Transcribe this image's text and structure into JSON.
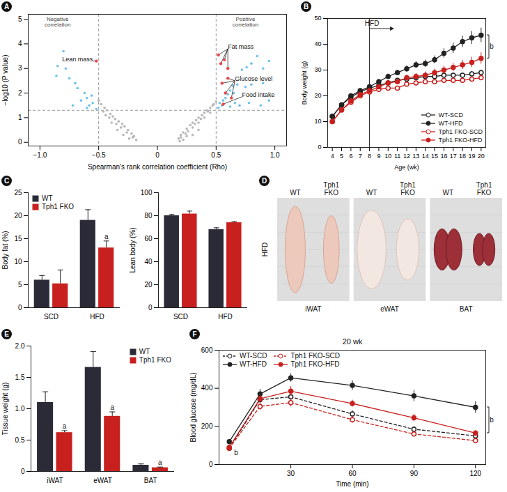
{
  "chart_data": [
    {
      "panel": "A",
      "type": "scatter",
      "xlabel": "Spearman's rank correlation coefficient (Rho)",
      "ylabel": "−log10 (P value)",
      "xlim": [
        -1.1,
        1.1
      ],
      "ylim": [
        -0.15,
        5.2
      ],
      "xticks": [
        {
          "value": -1,
          "label": "−1.0"
        },
        {
          "value": -0.5,
          "label": "−0.5"
        },
        0,
        0.5,
        {
          "value": 1,
          "label": "1.0"
        }
      ],
      "yticks": [
        0,
        1,
        2,
        3,
        4,
        5
      ],
      "reference_lines": {
        "x": [
          -0.5,
          0.5
        ],
        "y": [
          1.3
        ]
      },
      "series": [
        {
          "color": "#b8b8b8",
          "x": [
            0.18,
            0.2,
            0.22,
            0.25,
            0.28,
            0.3,
            0.33,
            0.35,
            0.38,
            0.4,
            0.42,
            0.45,
            0.47,
            0.5,
            0.2,
            0.24,
            0.3,
            0.35,
            0.4,
            0.45,
            0.26,
            0.32,
            0.37,
            0.43,
            0.48,
            0.3,
            0.25,
            0.35,
            0.19,
            0.22,
            -0.18,
            -0.2,
            -0.22,
            -0.25,
            -0.28,
            -0.3,
            -0.33,
            -0.36,
            -0.38,
            -0.4,
            -0.43,
            -0.45,
            -0.48,
            -0.5,
            -0.21,
            -0.26,
            -0.31,
            -0.35,
            -0.41,
            -0.46,
            -0.29,
            -0.34,
            -0.39,
            -0.44,
            -0.24
          ],
          "y": [
            0.15,
            0.3,
            0.4,
            0.55,
            0.7,
            0.8,
            0.9,
            1.0,
            1.1,
            1.2,
            1.3,
            1.4,
            1.5,
            1.65,
            0.2,
            0.35,
            0.6,
            0.8,
            1.0,
            1.2,
            0.45,
            0.75,
            0.95,
            1.25,
            1.55,
            0.3,
            0.25,
            0.5,
            0.05,
            0.1,
            0.1,
            0.25,
            0.35,
            0.5,
            0.65,
            0.75,
            0.85,
            0.95,
            1.05,
            1.15,
            1.3,
            1.4,
            1.55,
            1.7,
            0.2,
            0.4,
            0.6,
            0.75,
            1.0,
            1.25,
            0.3,
            0.5,
            0.8,
            1.1,
            0.15
          ]
        },
        {
          "color": "#6ec1ea",
          "x": [
            0.52,
            0.55,
            0.56,
            0.58,
            0.6,
            0.62,
            0.64,
            0.68,
            0.75,
            0.8,
            0.9,
            0.72,
            0.76,
            0.8,
            0.85,
            0.9,
            0.95,
            0.88,
            0.78,
            0.7,
            0.66,
            0.62,
            0.53,
            0.95,
            0.65,
            -0.52,
            -0.55,
            -0.58,
            -0.6,
            -0.62,
            -0.65,
            -0.68,
            -0.7,
            -0.72,
            -0.75,
            -0.78,
            -0.8,
            -0.85,
            -0.86,
            -0.56,
            -0.6
          ],
          "y": [
            1.4,
            1.5,
            1.7,
            1.8,
            1.95,
            2.1,
            2.3,
            2.35,
            2.25,
            2.35,
            2.4,
            2.95,
            3.05,
            3.2,
            3.5,
            3.0,
            3.3,
            1.5,
            1.6,
            1.5,
            1.6,
            1.45,
            1.6,
            1.7,
            2.0,
            1.35,
            1.6,
            1.5,
            1.8,
            2.0,
            1.7,
            2.2,
            2.4,
            1.5,
            2.6,
            3.0,
            3.7,
            3.1,
            2.7,
            1.9,
            1.4
          ]
        }
      ],
      "highlight_color": "#e8474c",
      "labeled_points": [
        {
          "label": "Lean mass",
          "label_x": -0.55,
          "label_y": 3.3,
          "x": [
            -0.52
          ],
          "y": [
            3.3
          ]
        },
        {
          "label": "Fat mass",
          "label_x": 0.6,
          "label_y": 3.8,
          "x": [
            0.52,
            0.54,
            0.57,
            0.6
          ],
          "y": [
            3.55,
            3.2,
            3.35,
            3.0
          ]
        },
        {
          "label": "Glucose level",
          "label_x": 0.66,
          "label_y": 2.5,
          "x": [
            0.55,
            0.58,
            0.6,
            0.63
          ],
          "y": [
            2.4,
            2.0,
            2.6,
            1.8
          ]
        },
        {
          "label": "Food intake",
          "label_x": 0.72,
          "label_y": 1.85,
          "x": [
            0.56
          ],
          "y": [
            1.55
          ]
        }
      ],
      "annotations": [
        {
          "text": "Negative correlation",
          "x": -0.85,
          "y": 5.1
        },
        {
          "text": "Positive correlation",
          "x": 0.75,
          "y": 5.1
        }
      ]
    },
    {
      "panel": "B",
      "type": "line",
      "xlabel": "Age (wk)",
      "ylabel": "Body weight (g)",
      "x": [
        4,
        5,
        6,
        7,
        8,
        9,
        10,
        11,
        12,
        13,
        14,
        15,
        16,
        17,
        18,
        19,
        20
      ],
      "xlim": [
        3.5,
        20.5
      ],
      "xticks": [
        4,
        5,
        6,
        7,
        8,
        9,
        10,
        11,
        12,
        13,
        14,
        15,
        16,
        17,
        18,
        19,
        20
      ],
      "ylim": [
        0,
        50
      ],
      "yticks": [
        0,
        10,
        20,
        30,
        40,
        50
      ],
      "series": [
        {
          "name": "WT-SCD",
          "color": "#222222",
          "marker": "open",
          "line_style": "solid",
          "values": [
            12,
            16.5,
            19.5,
            21.5,
            23,
            24,
            25,
            26,
            26.5,
            27,
            27.5,
            27.5,
            28,
            28,
            28,
            28.5,
            29
          ],
          "errors": [
            0.8,
            0.8,
            0.8,
            0.8,
            0.8,
            0.8,
            0.8,
            0.8,
            0.8,
            0.8,
            0.8,
            0.8,
            0.9,
            0.9,
            0.9,
            1.0,
            1.0
          ]
        },
        {
          "name": "WT-HFD",
          "color": "#222222",
          "marker": "filled",
          "line_style": "solid",
          "values": [
            12,
            16.5,
            20,
            22,
            23.5,
            25.5,
            27.5,
            29,
            30.5,
            32,
            32.5,
            34,
            36.5,
            38.5,
            41,
            42.5,
            43.5
          ],
          "errors": [
            0.8,
            0.8,
            0.8,
            0.8,
            0.8,
            0.9,
            1.0,
            1.0,
            1.2,
            1.3,
            1.4,
            1.5,
            1.8,
            2.0,
            2.2,
            2.5,
            2.8
          ]
        },
        {
          "name": "Tph1 FKO-SCD",
          "color": "#c8201e",
          "marker": "open",
          "line_style": "solid",
          "values": [
            10,
            14.5,
            17.5,
            20,
            21.5,
            22.5,
            23,
            23,
            24.5,
            25,
            25.5,
            25.5,
            26,
            26,
            26,
            26.5,
            27
          ],
          "errors": [
            0.8,
            0.8,
            0.8,
            0.8,
            0.8,
            0.8,
            0.8,
            0.8,
            0.8,
            0.8,
            0.8,
            0.8,
            0.8,
            0.8,
            0.9,
            0.9,
            0.9
          ]
        },
        {
          "name": "Tph1 FKO-HFD",
          "color": "#c8201e",
          "marker": "filled",
          "line_style": "solid",
          "values": [
            10,
            14.5,
            18,
            20.5,
            22,
            23.5,
            25,
            25.5,
            27,
            27.5,
            28,
            29,
            30,
            31,
            32,
            33,
            34.5
          ],
          "errors": [
            0.8,
            0.8,
            0.8,
            0.8,
            0.8,
            0.9,
            1.0,
            1.0,
            1.1,
            1.2,
            1.3,
            1.4,
            1.5,
            1.6,
            1.8,
            2.0,
            2.2
          ]
        }
      ],
      "legend": "bottom-right",
      "treatment": {
        "text": "HFD",
        "x": 8
      },
      "annotations": [
        {
          "text": "b",
          "x": 20,
          "between": [
            "WT-HFD",
            "Tph1 FKO-HFD"
          ]
        }
      ]
    },
    {
      "panel": "C",
      "type": "bar",
      "ylabel": "Body fat (%)",
      "categories": [
        "SCD",
        "HFD"
      ],
      "series": [
        {
          "name": "WT",
          "color": "#2b2b38",
          "values": [
            6,
            19
          ],
          "errors": [
            1,
            2.3
          ]
        },
        {
          "name": "Tph1 FKO",
          "color": "#c8201e",
          "values": [
            5.2,
            13
          ],
          "errors": [
            3,
            1.5
          ]
        }
      ],
      "ylim": [
        0,
        25
      ],
      "yticks": [
        0,
        5,
        10,
        15,
        20,
        25
      ],
      "legend": "top-left",
      "annotations": [
        {
          "text": "a",
          "category": "HFD",
          "series": "Tph1 FKO"
        }
      ]
    },
    {
      "panel": "C",
      "type": "bar",
      "ylabel": "Lean body (%)",
      "categories": [
        "SCD",
        "HFD"
      ],
      "series": [
        {
          "name": "WT",
          "color": "#2b2b38",
          "values": [
            80,
            68
          ],
          "errors": [
            1,
            1.5
          ]
        },
        {
          "name": "Tph1 FKO",
          "color": "#c8201e",
          "values": [
            81.5,
            74
          ],
          "errors": [
            2.5,
            0.8
          ]
        }
      ],
      "ylim": [
        0,
        100
      ],
      "yticks": [
        0,
        20,
        40,
        60,
        80,
        100
      ]
    },
    {
      "panel": "D",
      "type": "image",
      "row_label": "HFD",
      "groups": [
        {
          "label": "iWAT",
          "columns": [
            "WT",
            "Tph1 FKO"
          ]
        },
        {
          "label": "eWAT",
          "columns": [
            "WT",
            "Tph1 FKO"
          ]
        },
        {
          "label": "BAT",
          "columns": [
            "WT",
            "Tph1 FKO"
          ]
        }
      ]
    },
    {
      "panel": "E",
      "type": "bar",
      "ylabel": "Tissue weight (g)",
      "categories": [
        "iWAT",
        "eWAT",
        "BAT"
      ],
      "series": [
        {
          "name": "WT",
          "color": "#2b2b38",
          "values": [
            1.1,
            1.66,
            0.1
          ],
          "errors": [
            0.17,
            0.25,
            0.02
          ]
        },
        {
          "name": "Tph1 FKO",
          "color": "#c8201e",
          "values": [
            0.62,
            0.88,
            0.06
          ],
          "errors": [
            0.03,
            0.07,
            0.01
          ]
        }
      ],
      "ylim": [
        0,
        2
      ],
      "yticks": [
        0,
        0.5,
        {
          "value": 1,
          "label": "1.0"
        },
        1.5,
        {
          "value": 2,
          "label": "2.0"
        }
      ],
      "legend": "top-right",
      "annotations": [
        {
          "text": "a",
          "category": "iWAT",
          "series": "Tph1 FKO"
        },
        {
          "text": "a",
          "category": "eWAT",
          "series": "Tph1 FKO"
        },
        {
          "text": "a",
          "category": "BAT",
          "series": "Tph1 FKO"
        }
      ]
    },
    {
      "panel": "F",
      "type": "line",
      "title": "20 wk",
      "xlabel": "Time (min)",
      "ylabel": "Blood glucose (mg/dL)",
      "x": [
        0,
        15,
        30,
        60,
        90,
        120
      ],
      "xlim": [
        -5,
        125
      ],
      "xticks": [
        30,
        60,
        90,
        120
      ],
      "ylim": [
        0,
        600
      ],
      "yticks": [
        0,
        200,
        400,
        600
      ],
      "series": [
        {
          "name": "WT-SCD",
          "color": "#222222",
          "marker": "open",
          "line_style": "dashed",
          "values": [
            85,
            340,
            355,
            265,
            185,
            150
          ],
          "errors": [
            10,
            20,
            20,
            18,
            15,
            12
          ]
        },
        {
          "name": "WT-HFD",
          "color": "#222222",
          "marker": "filled",
          "line_style": "solid",
          "values": [
            120,
            370,
            455,
            415,
            360,
            300
          ],
          "errors": [
            12,
            25,
            22,
            25,
            30,
            30
          ]
        },
        {
          "name": "Tph1 FKO-SCD",
          "color": "#c8201e",
          "marker": "open",
          "line_style": "dashed",
          "values": [
            85,
            305,
            325,
            235,
            160,
            125
          ],
          "errors": [
            10,
            20,
            22,
            18,
            12,
            10
          ]
        },
        {
          "name": "Tph1 FKO-HFD",
          "color": "#c8201e",
          "marker": "filled",
          "line_style": "solid",
          "values": [
            90,
            345,
            385,
            320,
            245,
            165
          ],
          "errors": [
            10,
            20,
            25,
            18,
            20,
            15
          ]
        }
      ],
      "legend": "top-left",
      "annotations": [
        {
          "text": "b",
          "x": 0,
          "y": 60
        },
        {
          "text": "b",
          "x": 120,
          "between": [
            "WT-HFD",
            "Tph1 FKO-HFD"
          ]
        }
      ]
    }
  ]
}
